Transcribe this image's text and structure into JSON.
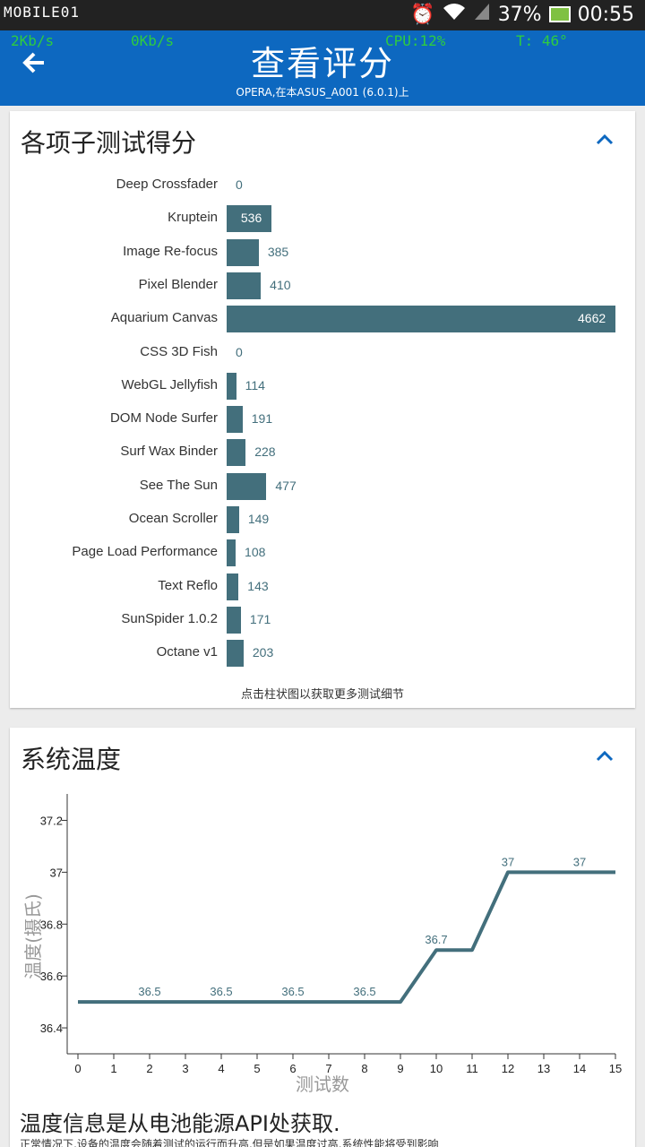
{
  "status": {
    "logo": "MOBILE01",
    "battery": "37%",
    "time": "00:55"
  },
  "overlay": {
    "up": "2Kb/s",
    "down": "0Kb/s",
    "cpu": "CPU:12%",
    "temp": "T:  46°"
  },
  "appbar": {
    "title": "查看评分",
    "subtitle": "OPERA,在本ASUS_A001 (6.0.1)上"
  },
  "scores": {
    "heading": "各项子测试得分",
    "hint": "点击柱状图以获取更多测试细节"
  },
  "temperature": {
    "heading": "系统温度",
    "footnote": "温度信息是从电池能源API处获取.",
    "footnote2": "正常情况下,设备的温度会随着测试的运行而升高,但是如果温度过高,系统性能将受到影响"
  },
  "colors": {
    "accent": "#0d68c0",
    "bar": "#436f7c"
  },
  "chart_data": [
    {
      "type": "bar",
      "orientation": "horizontal",
      "categories": [
        "Deep Crossfader",
        "Kruptein",
        "Image Re-focus",
        "Pixel Blender",
        "Aquarium Canvas",
        "CSS 3D Fish",
        "WebGL Jellyfish",
        "DOM Node Surfer",
        "Surf Wax Binder",
        "See The Sun",
        "Ocean Scroller",
        "Page Load Performance",
        "Text Reflo",
        "SunSpider 1.0.2",
        "Octane v1"
      ],
      "values": [
        0,
        536,
        385,
        410,
        4662,
        0,
        114,
        191,
        228,
        477,
        149,
        108,
        143,
        171,
        203
      ]
    },
    {
      "type": "line",
      "x": [
        0,
        1,
        2,
        3,
        4,
        5,
        6,
        7,
        8,
        9,
        10,
        11,
        12,
        13,
        14,
        15
      ],
      "values": [
        36.5,
        36.5,
        36.5,
        36.5,
        36.5,
        36.5,
        36.5,
        36.5,
        36.5,
        36.5,
        36.7,
        36.7,
        37,
        37,
        37,
        37
      ],
      "point_labels": [
        {
          "x": 2,
          "text": "36.5"
        },
        {
          "x": 4,
          "text": "36.5"
        },
        {
          "x": 6,
          "text": "36.5"
        },
        {
          "x": 8,
          "text": "36.5"
        },
        {
          "x": 10,
          "text": "36.7"
        },
        {
          "x": 12,
          "text": "37"
        },
        {
          "x": 14,
          "text": "37"
        }
      ],
      "xlabel": "测试数",
      "ylabel": "温度(摄氏)",
      "yticks": [
        "36.4",
        "36.6",
        "36.8",
        "37",
        "37.2"
      ],
      "xticks": [
        "0",
        "1",
        "2",
        "3",
        "4",
        "5",
        "6",
        "7",
        "8",
        "9",
        "10",
        "11",
        "12",
        "13",
        "14",
        "15"
      ],
      "ylim": [
        36.3,
        37.25
      ],
      "xlim": [
        0,
        15
      ]
    }
  ]
}
